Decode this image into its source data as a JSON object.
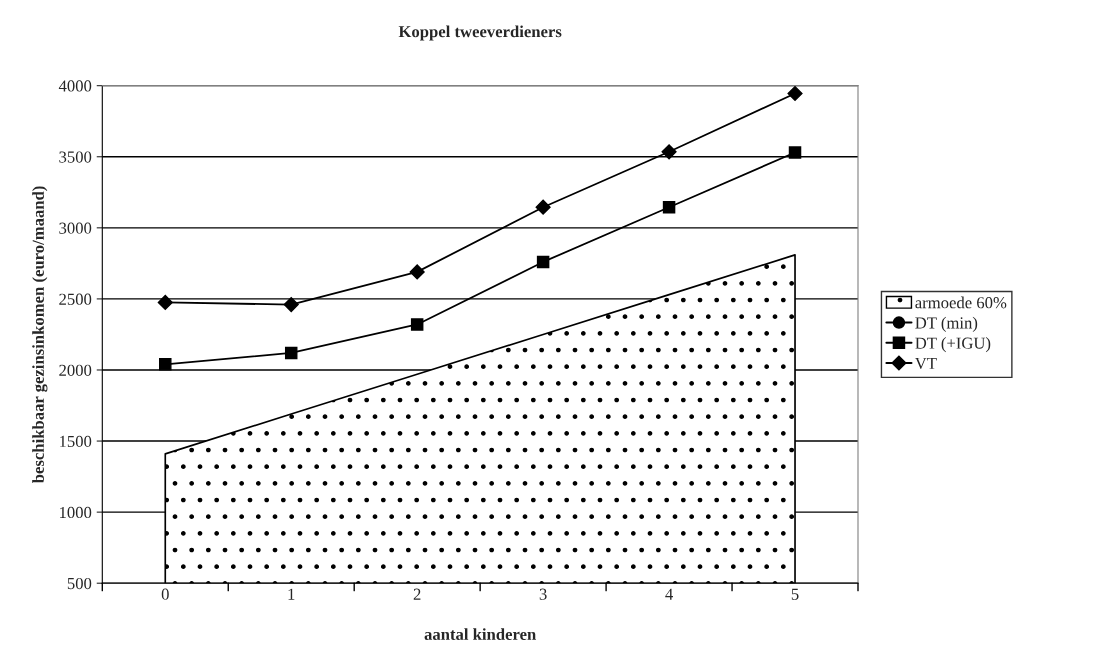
{
  "chart_data": {
    "type": "line",
    "title": "Koppel tweeverdieners",
    "xlabel": "aantal kinderen",
    "ylabel": "beschikbaar gezinsinkomen (euro/maand)",
    "categories": [
      "0",
      "1",
      "2",
      "3",
      "4",
      "5"
    ],
    "series": [
      {
        "name": "armoede 60%",
        "type": "area",
        "color": "#000000",
        "values": [
          1410,
          1690,
          1970,
          2250,
          2530,
          2810
        ]
      },
      {
        "name": "DT (min)",
        "color": "#000000",
        "marker": "circle",
        "values": [
          null,
          null,
          null,
          null,
          null,
          null
        ]
      },
      {
        "name": "DT (+IGU)",
        "color": "#000000",
        "marker": "square",
        "values": [
          2040,
          2120,
          2320,
          2760,
          3145,
          3530
        ]
      },
      {
        "name": "VT",
        "color": "#000000",
        "marker": "diamond",
        "values": [
          2475,
          2460,
          2690,
          3145,
          3535,
          3945
        ]
      }
    ],
    "ylim": [
      500,
      4000
    ],
    "yticks": [
      500,
      1000,
      1500,
      2000,
      2500,
      3000,
      3500,
      4000
    ],
    "grid": "y",
    "legend": "right"
  }
}
